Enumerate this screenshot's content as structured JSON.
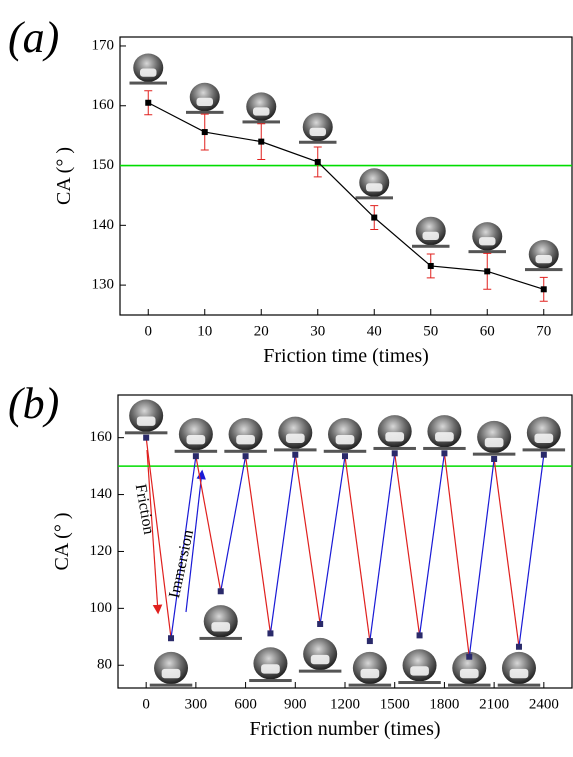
{
  "chart_data": [
    {
      "type": "line",
      "panel_label": "(a)",
      "x_label": "Friction time (times)",
      "y_label": "CA (° )",
      "x": [
        0,
        10,
        20,
        30,
        40,
        50,
        60,
        70
      ],
      "series": [
        {
          "color": "#000000",
          "error_color": "#e0201e",
          "values": [
            160.5,
            155.6,
            154.0,
            150.6,
            141.3,
            133.2,
            132.3,
            129.3
          ],
          "errors": [
            2.0,
            3.0,
            3.0,
            2.5,
            2.0,
            2.0,
            3.0,
            2.0
          ]
        }
      ],
      "xlim": [
        -5,
        75
      ],
      "ylim": [
        125,
        171.5
      ],
      "xticks": [
        0,
        10,
        20,
        30,
        40,
        50,
        60,
        70
      ],
      "yticks": [
        130,
        140,
        150,
        160,
        170
      ],
      "reference_line": {
        "value": 150,
        "color": "#00dd00"
      }
    },
    {
      "type": "zigzag",
      "panel_label": "(b)",
      "x_label": "Friction number (times)",
      "y_label": "CA (° )",
      "x": [
        0,
        150,
        300,
        450,
        600,
        750,
        900,
        1050,
        1200,
        1350,
        1500,
        1650,
        1800,
        1950,
        2100,
        2250,
        2400
      ],
      "series": [
        {
          "color": "#000000",
          "color_decrease": "#e0201e",
          "color_increase": "#1a1ad6",
          "values": [
            160,
            89.5,
            153.5,
            106,
            153.5,
            91.2,
            154,
            94.5,
            153.5,
            88.5,
            154.5,
            90.5,
            154.5,
            83,
            152.5,
            86.5,
            154
          ]
        }
      ],
      "xlim": [
        -170,
        2570
      ],
      "ylim": [
        72,
        175
      ],
      "xticks": [
        0,
        300,
        600,
        900,
        1200,
        1500,
        1800,
        2100,
        2400
      ],
      "yticks": [
        80,
        100,
        120,
        140,
        160
      ],
      "reference_line": {
        "value": 150,
        "color": "#00dd00"
      },
      "annotations": [
        {
          "text": "Friction",
          "color": "#e0201e"
        },
        {
          "text": "Immersion",
          "color": "#1a1ad6"
        }
      ]
    }
  ]
}
